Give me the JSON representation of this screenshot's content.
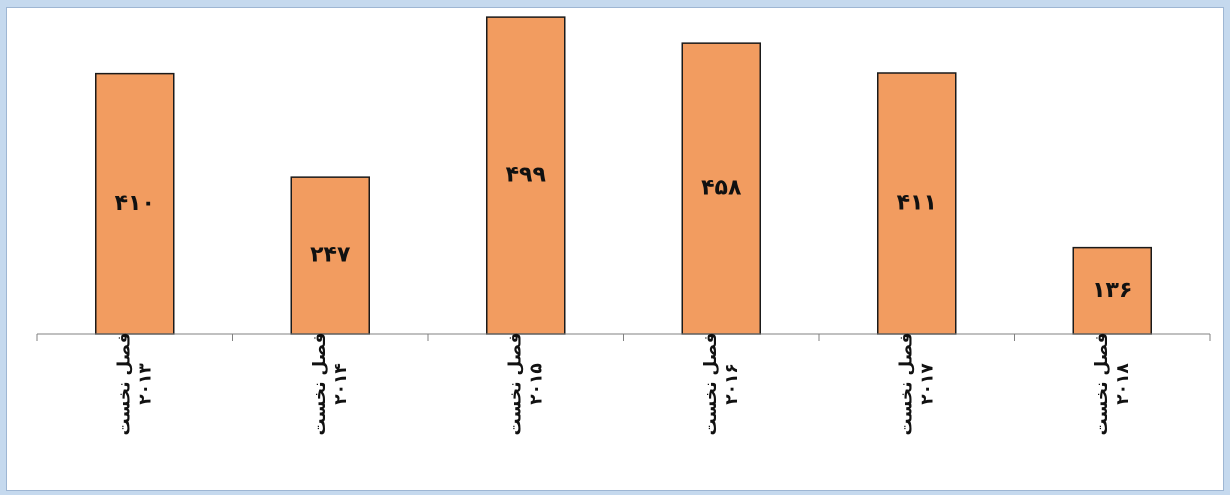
{
  "chart_data": {
    "type": "bar",
    "categories": [
      [
        "فصل نخست",
        "۲۰۱۳"
      ],
      [
        "فصل نخست",
        "۲۰۱۴"
      ],
      [
        "فصل نخست",
        "۲۰۱۵"
      ],
      [
        "فصل نخست",
        "۲۰۱۶"
      ],
      [
        "فصل نخست",
        "۲۰۱۷"
      ],
      [
        "فصل نخست",
        "۲۰۱۸"
      ]
    ],
    "values": [
      410,
      247,
      499,
      458,
      411,
      136
    ],
    "data_labels": [
      "۴۱۰",
      "۲۴۷",
      "۴۹۹",
      "۴۵۸",
      "۴۱۱",
      "۱۳۶"
    ],
    "title": "",
    "xlabel": "",
    "ylabel": "",
    "ylim": [
      0,
      500
    ],
    "grid": false,
    "legend": "none",
    "colors": {
      "bar": "#f29c60",
      "bar_border": "#1a1a1a",
      "background": "#c5d9ee"
    }
  }
}
